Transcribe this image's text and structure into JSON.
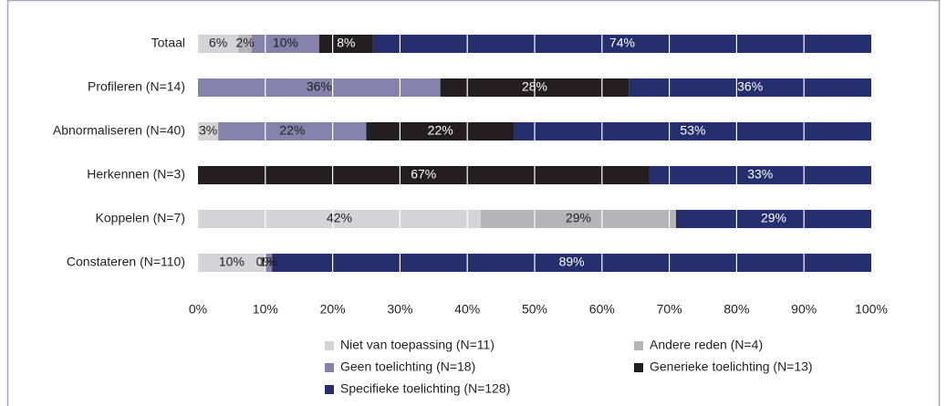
{
  "chart_data": {
    "type": "stacked-bar-horizontal",
    "categories": [
      "Totaal",
      "Profileren (N=14)",
      "Abnormaliseren (N=40)",
      "Herkennen (N=3)",
      "Koppelen (N=7)",
      "Constateren (N=110)"
    ],
    "series": [
      {
        "name": "Niet van toepassing (N=11)",
        "color": "#d4d4d6",
        "values": [
          6,
          null,
          3,
          null,
          42,
          10
        ],
        "value_labels": [
          "6%",
          null,
          "3%",
          null,
          "42%",
          "10%"
        ]
      },
      {
        "name": "Andere reden (N=4)",
        "color": "#b4b4b6",
        "values": [
          2,
          null,
          null,
          null,
          29,
          0
        ],
        "value_labels": [
          "2%",
          null,
          null,
          null,
          "29%",
          "0%"
        ]
      },
      {
        "name": "Geen toelichting (N=18)",
        "color": "#8481aa",
        "values": [
          10,
          36,
          22,
          null,
          null,
          1
        ],
        "value_labels": [
          "10%",
          "36%",
          "22%",
          null,
          null,
          "1%"
        ]
      },
      {
        "name": "Generieke toelichting (N=13)",
        "color": "#231f20",
        "values": [
          8,
          28,
          22,
          67,
          null,
          null
        ],
        "value_labels": [
          "8%",
          "28%",
          "22%",
          "67%",
          null,
          null
        ]
      },
      {
        "name": "Specifieke toelichting (N=128)",
        "color": "#252f6d",
        "values": [
          74,
          36,
          53,
          33,
          29,
          89
        ],
        "value_labels": [
          "74%",
          "36%",
          "53%",
          "33%",
          "29%",
          "89%"
        ]
      }
    ],
    "xlim": [
      0,
      100
    ],
    "xticks": [
      {
        "value": 0,
        "label": "0%"
      },
      {
        "value": 10,
        "label": "10%"
      },
      {
        "value": 20,
        "label": "20%"
      },
      {
        "value": 30,
        "label": "30%"
      },
      {
        "value": 40,
        "label": "40%"
      },
      {
        "value": 50,
        "label": "50%"
      },
      {
        "value": 60,
        "label": "60%"
      },
      {
        "value": 70,
        "label": "70%"
      },
      {
        "value": 80,
        "label": "80%"
      },
      {
        "value": 90,
        "label": "90%"
      },
      {
        "value": 100,
        "label": "100%"
      }
    ],
    "grid": true
  }
}
